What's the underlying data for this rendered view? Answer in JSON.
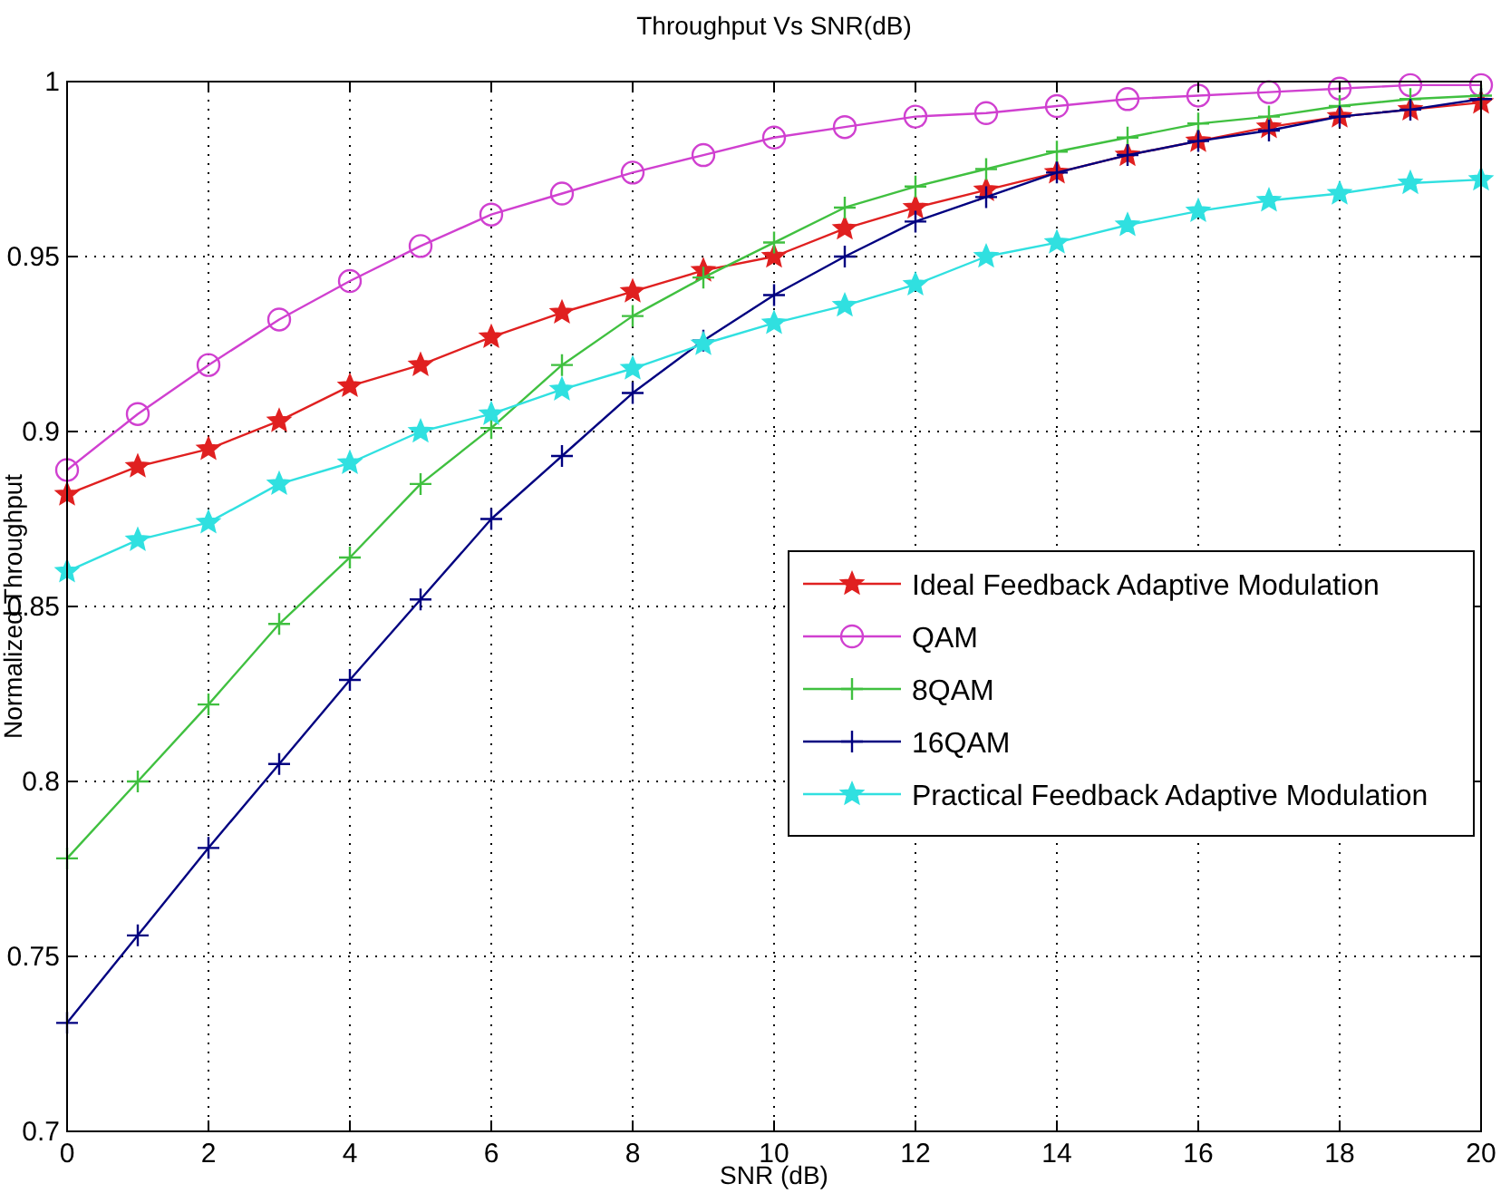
{
  "chart_data": {
    "type": "line",
    "title": "Throughput Vs SNR(dB)",
    "xlabel": "SNR (dB)",
    "ylabel": "Normalized Throughput",
    "x": [
      0,
      1,
      2,
      3,
      4,
      5,
      6,
      7,
      8,
      9,
      10,
      11,
      12,
      13,
      14,
      15,
      16,
      17,
      18,
      19,
      20
    ],
    "series": [
      {
        "name": "Ideal Feedback Adaptive Modulation",
        "color": "#e02020",
        "marker": "star",
        "values": [
          0.882,
          0.89,
          0.895,
          0.903,
          0.913,
          0.919,
          0.927,
          0.934,
          0.94,
          0.946,
          0.95,
          0.958,
          0.964,
          0.969,
          0.974,
          0.979,
          0.983,
          0.987,
          0.99,
          0.992,
          0.994
        ]
      },
      {
        "name": "QAM",
        "color": "#d040d0",
        "marker": "circle",
        "values": [
          0.889,
          0.905,
          0.919,
          0.932,
          0.943,
          0.953,
          0.962,
          0.968,
          0.974,
          0.979,
          0.984,
          0.987,
          0.99,
          0.991,
          0.993,
          0.995,
          0.996,
          0.997,
          0.998,
          0.999,
          0.999
        ]
      },
      {
        "name": "8QAM",
        "color": "#40c040",
        "marker": "cross",
        "values": [
          0.778,
          0.8,
          0.822,
          0.845,
          0.864,
          0.885,
          0.901,
          0.919,
          0.933,
          0.944,
          0.954,
          0.964,
          0.97,
          0.975,
          0.98,
          0.984,
          0.988,
          0.99,
          0.993,
          0.995,
          0.996
        ]
      },
      {
        "name": "16QAM",
        "color": "#000080",
        "marker": "cross",
        "values": [
          0.731,
          0.756,
          0.781,
          0.805,
          0.829,
          0.852,
          0.875,
          0.893,
          0.911,
          0.926,
          0.939,
          0.95,
          0.96,
          0.967,
          0.974,
          0.979,
          0.983,
          0.986,
          0.99,
          0.992,
          0.995
        ]
      },
      {
        "name": "Practical Feedback Adaptive Modulation",
        "color": "#30e0e0",
        "marker": "star",
        "values": [
          0.86,
          0.869,
          0.874,
          0.885,
          0.891,
          0.9,
          0.905,
          0.912,
          0.918,
          0.925,
          0.931,
          0.936,
          0.942,
          0.95,
          0.954,
          0.959,
          0.963,
          0.966,
          0.968,
          0.971,
          0.972
        ]
      }
    ],
    "xlim": [
      0,
      20
    ],
    "xticks": [
      0,
      2,
      4,
      6,
      8,
      10,
      12,
      14,
      16,
      18,
      20
    ],
    "ylim": [
      0.7,
      1
    ],
    "yticks": [
      0.7,
      0.75,
      0.8,
      0.85,
      0.9,
      0.95,
      1
    ],
    "grid": true,
    "legend": "right",
    "line_style": "solid"
  }
}
